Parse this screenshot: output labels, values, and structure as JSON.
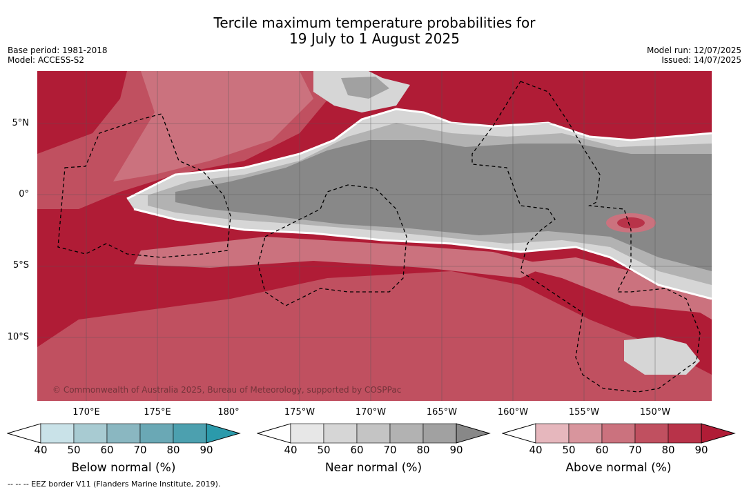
{
  "title_line1": "Tercile maximum temperature probabilities for",
  "title_line2": "19 July to 1 August 2025",
  "base_period": "Base period: 1981-2018",
  "model": "Model: ACCESS-S2",
  "model_run": "Model run: 12/07/2025",
  "issued": "Issued: 14/07/2025",
  "copyright": "© Commonwealth of Australia 2025, Bureau of Meteorology, supported by COSPPac",
  "footnote": "-- -- -- EEZ border V11 (Flanders Marine Institute, 2019).",
  "lat_labels": [
    "5°N",
    "0°",
    "5°S",
    "10°S"
  ],
  "lon_labels": [
    "170°E",
    "175°E",
    "180°",
    "175°W",
    "170°W",
    "165°W",
    "160°W",
    "155°W",
    "150°W"
  ],
  "colorbars": [
    {
      "name": "below",
      "title": "Below normal (%)",
      "ticks": [
        "40",
        "50",
        "60",
        "70",
        "80",
        "90"
      ],
      "colors": [
        "#ffffff",
        "#c9e2e8",
        "#a8cbd2",
        "#8ab7c1",
        "#6aa8b5",
        "#4ca0af",
        "#2b9aab"
      ]
    },
    {
      "name": "near",
      "title": "Near normal (%)",
      "ticks": [
        "40",
        "50",
        "60",
        "70",
        "80",
        "90"
      ],
      "colors": [
        "#ffffff",
        "#e7e7e7",
        "#d6d6d6",
        "#c4c4c4",
        "#b2b2b2",
        "#a1a1a1",
        "#888888"
      ]
    },
    {
      "name": "above",
      "title": "Above normal (%)",
      "ticks": [
        "40",
        "50",
        "60",
        "70",
        "80",
        "90"
      ],
      "colors": [
        "#ffffff",
        "#e6b7bd",
        "#d8959d",
        "#cb727e",
        "#c05060",
        "#b83349",
        "#b01c36"
      ]
    }
  ]
}
